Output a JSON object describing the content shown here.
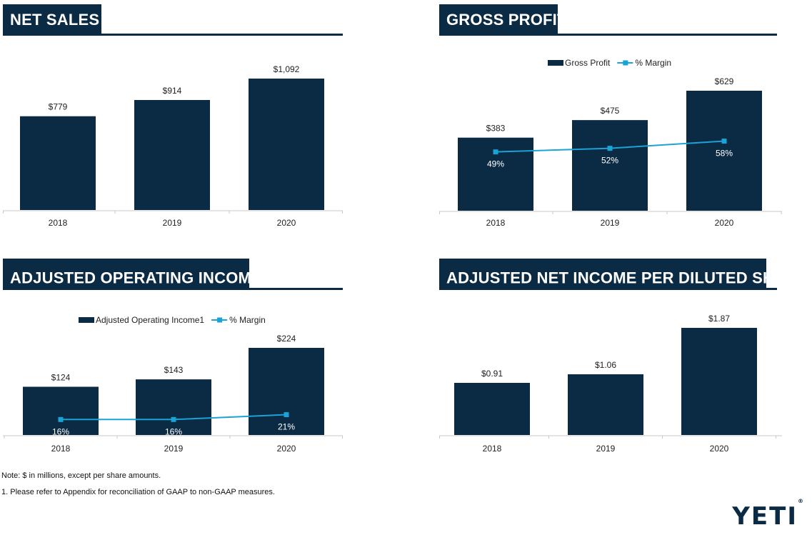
{
  "colors": {
    "bar": "#0b2a44",
    "line": "#1aa3d6",
    "axis": "#c8c8c8"
  },
  "notes": {
    "note1": "Note: $ in millions, except per share amounts.",
    "note2": "1. Please refer to Appendix for reconciliation of GAAP to non-GAAP measures."
  },
  "logo": {
    "text": "YETI",
    "tm": "®"
  },
  "chart_data": [
    {
      "id": "net_sales",
      "type": "bar",
      "title": "NET SALES",
      "title_sup": "",
      "categories": [
        "2018",
        "2019",
        "2020"
      ],
      "values": [
        779,
        914,
        1092
      ],
      "labels": [
        "$779",
        "$914",
        "$1,092"
      ],
      "ylim": [
        0,
        1092
      ],
      "legend": null
    },
    {
      "id": "gross_profit",
      "type": "bar",
      "title": "GROSS PROFIT",
      "title_sup": "",
      "categories": [
        "2018",
        "2019",
        "2020"
      ],
      "values": [
        383,
        475,
        629
      ],
      "labels": [
        "$383",
        "$475",
        "$629"
      ],
      "ylim": [
        0,
        629
      ],
      "line": {
        "values": [
          49,
          52,
          58
        ],
        "labels": [
          "49%",
          "52%",
          "58%"
        ],
        "ylim": [
          0,
          100
        ]
      },
      "legend": {
        "bar": "Gross Profit",
        "line": "% Margin",
        "position": "top-right"
      }
    },
    {
      "id": "adj_operating_income",
      "type": "bar",
      "title": "ADJUSTED OPERATING INCOME",
      "title_sup": "1",
      "categories": [
        "2018",
        "2019",
        "2020"
      ],
      "values": [
        124,
        143,
        224
      ],
      "labels": [
        "$124",
        "$143",
        "$224"
      ],
      "ylim": [
        0,
        224
      ],
      "line": {
        "values": [
          16,
          16,
          21
        ],
        "labels": [
          "16%",
          "16%",
          "21%"
        ],
        "ylim": [
          0,
          90
        ]
      },
      "legend": {
        "bar": "Adjusted Operating Income1",
        "line": "% Margin",
        "position": "top-right"
      }
    },
    {
      "id": "adj_net_income_per_share",
      "type": "bar",
      "title": "ADJUSTED NET INCOME PER DILUTED SHARE",
      "title_sup": "1",
      "categories": [
        "2018",
        "2019",
        "2020"
      ],
      "values": [
        0.91,
        1.06,
        1.87
      ],
      "labels": [
        "$0.91",
        "$1.06",
        "$1.87"
      ],
      "ylim": [
        0,
        1.87
      ],
      "legend": null
    }
  ]
}
